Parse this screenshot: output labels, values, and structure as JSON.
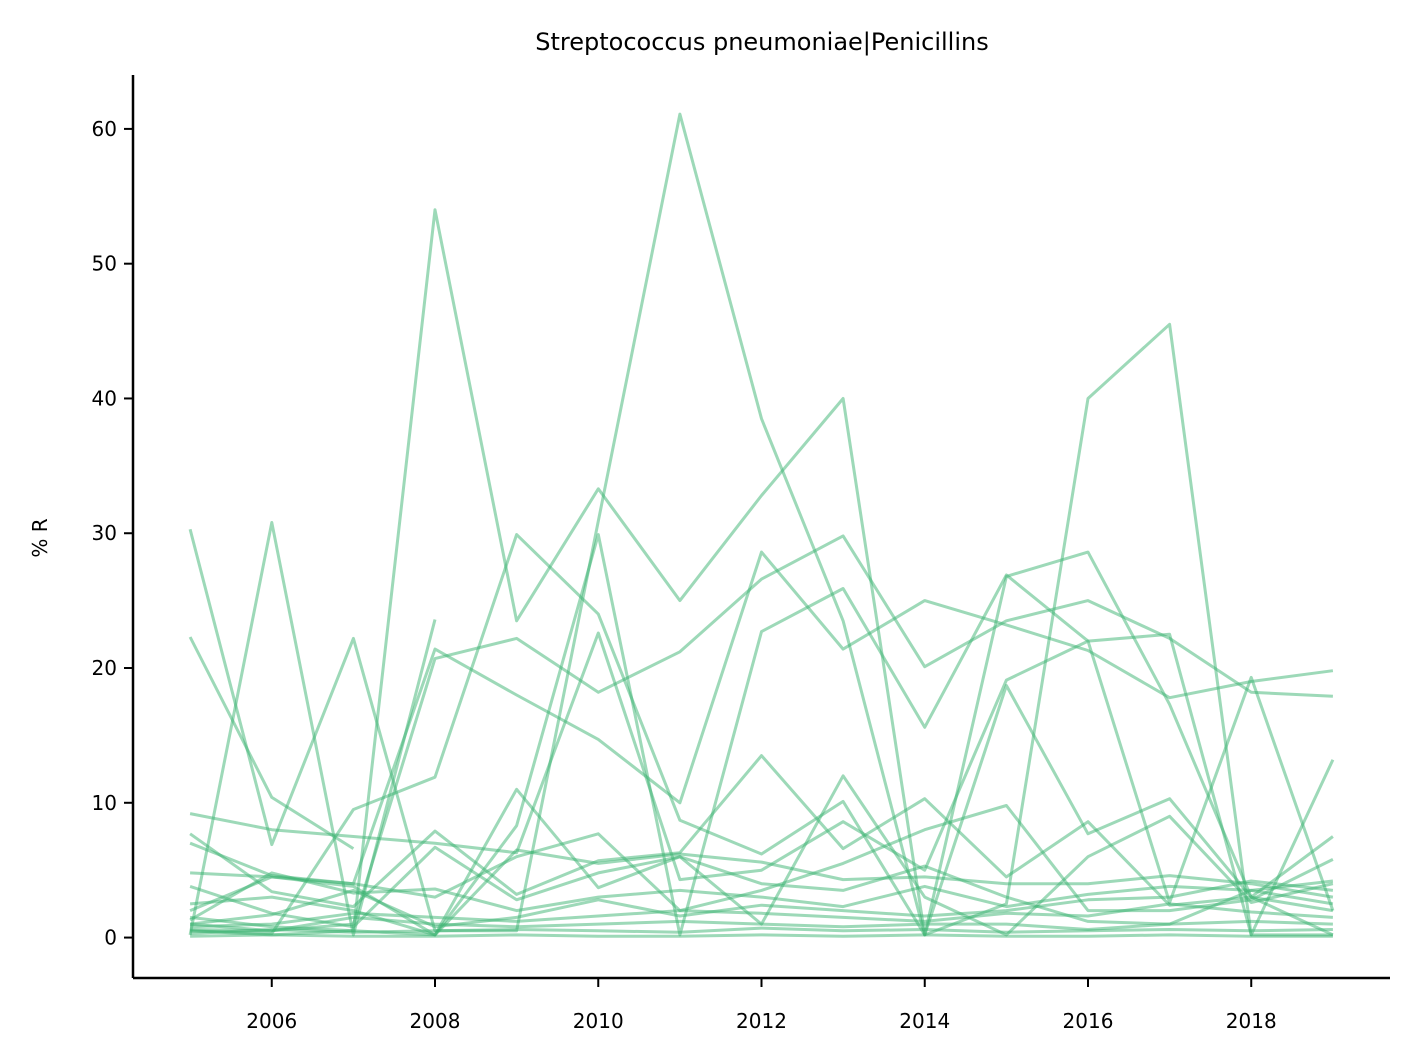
{
  "chart_data": {
    "type": "line",
    "title": "Streptococcus pneumoniae|Penicillins",
    "xlabel": "",
    "ylabel": "% R",
    "xlim": [
      2004.3,
      2019.7
    ],
    "ylim": [
      -3,
      64
    ],
    "xticks": [
      2006,
      2008,
      2010,
      2012,
      2014,
      2016,
      2018
    ],
    "yticks": [
      0,
      10,
      20,
      30,
      40,
      50,
      60
    ],
    "grid": false,
    "legend": "none",
    "line_color": "#3cb371",
    "x": [
      2005,
      2006,
      2007,
      2008,
      2009,
      2010,
      2011,
      2012,
      2013,
      2014,
      2015,
      2016,
      2017,
      2018,
      2019
    ],
    "series": [
      {
        "values": [
          1.5,
          0.8,
          0.5,
          54.0,
          23.5,
          33.3,
          25.0,
          32.8,
          40.0,
          0.2,
          18.7,
          7.7,
          10.3,
          3.0,
          0.2
        ]
      },
      {
        "values": [
          30.3,
          6.9,
          22.2,
          0.5,
          0.5,
          30.9,
          61.1,
          38.5,
          23.5,
          0.2,
          2.5,
          40.0,
          45.5,
          0.2,
          13.2
        ]
      },
      {
        "values": [
          22.3,
          10.4,
          6.6,
          null,
          null,
          null,
          null,
          null,
          null,
          null,
          null,
          null,
          null,
          null,
          null
        ]
      },
      {
        "values": [
          0.2,
          30.8,
          0.2,
          23.6,
          null,
          null,
          null,
          null,
          null,
          null,
          null,
          null,
          null,
          null,
          null
        ]
      },
      {
        "values": [
          0.5,
          0.3,
          9.5,
          11.9,
          29.9,
          24.0,
          8.7,
          6.2,
          10.1,
          0.2,
          26.8,
          28.6,
          17.3,
          3.0,
          2.0
        ]
      },
      {
        "values": [
          2.0,
          4.5,
          4.0,
          21.4,
          18.0,
          14.7,
          10.0,
          28.6,
          21.4,
          25.0,
          23.2,
          21.3,
          17.8,
          19.0,
          19.8
        ]
      },
      {
        "values": [
          1.0,
          0.5,
          1.0,
          20.7,
          22.2,
          18.2,
          21.2,
          26.6,
          29.8,
          20.1,
          23.5,
          25.0,
          22.2,
          18.2,
          17.9
        ]
      },
      {
        "values": [
          0.5,
          0.2,
          0.5,
          0.2,
          8.3,
          29.9,
          0.2,
          22.7,
          25.9,
          15.6,
          26.9,
          22.0,
          22.5,
          0.2,
          0.2
        ]
      },
      {
        "values": [
          9.2,
          8.0,
          7.5,
          7.0,
          6.3,
          22.6,
          4.3,
          5.0,
          8.6,
          5.0,
          19.1,
          22.0,
          2.6,
          19.3,
          2.0
        ]
      },
      {
        "values": [
          7.7,
          3.4,
          2.3,
          7.9,
          3.2,
          5.7,
          6.3,
          13.5,
          6.6,
          10.3,
          4.5,
          8.6,
          2.4,
          3.0,
          7.5
        ]
      },
      {
        "values": [
          4.8,
          4.5,
          3.8,
          0.2,
          11.0,
          3.7,
          6.0,
          1.0,
          12.0,
          3.0,
          0.2,
          6.0,
          9.0,
          2.6,
          4.0
        ]
      },
      {
        "values": [
          7.0,
          4.6,
          4.0,
          3.0,
          6.0,
          7.7,
          2.0,
          3.5,
          5.5,
          8.0,
          9.8,
          2.0,
          2.0,
          2.8,
          5.8
        ]
      },
      {
        "values": [
          3.8,
          1.8,
          0.8,
          6.7,
          2.8,
          4.8,
          6.0,
          4.0,
          3.5,
          5.3,
          3.0,
          1.2,
          1.0,
          3.5,
          4.2
        ]
      },
      {
        "values": [
          2.5,
          3.0,
          2.0,
          0.2,
          6.5,
          5.5,
          6.2,
          5.6,
          4.3,
          4.5,
          4.0,
          4.0,
          4.6,
          4.0,
          3.0
        ]
      },
      {
        "values": [
          1.3,
          4.8,
          3.3,
          3.6,
          2.0,
          3.0,
          3.5,
          3.0,
          2.3,
          3.8,
          2.3,
          3.2,
          3.8,
          3.5,
          2.5
        ]
      },
      {
        "values": [
          1.0,
          1.7,
          3.5,
          0.8,
          1.5,
          2.8,
          1.6,
          2.4,
          2.0,
          1.6,
          2.0,
          2.8,
          3.0,
          4.2,
          3.5
        ]
      },
      {
        "values": [
          0.8,
          1.0,
          1.8,
          1.5,
          1.2,
          1.6,
          2.0,
          1.8,
          1.5,
          1.2,
          1.8,
          1.6,
          2.5,
          1.9,
          1.5
        ]
      },
      {
        "values": [
          0.6,
          0.5,
          1.5,
          1.0,
          0.8,
          1.0,
          1.2,
          1.0,
          0.8,
          1.0,
          1.0,
          0.6,
          1.0,
          1.2,
          1.0
        ]
      },
      {
        "values": [
          0.3,
          0.6,
          0.4,
          0.5,
          0.6,
          0.5,
          0.4,
          0.7,
          0.5,
          0.6,
          0.4,
          0.5,
          0.6,
          0.5,
          0.6
        ]
      },
      {
        "values": [
          0.1,
          0.2,
          0.1,
          0.1,
          0.2,
          0.1,
          0.1,
          0.2,
          0.1,
          0.2,
          0.1,
          0.1,
          0.2,
          0.1,
          0.1
        ]
      }
    ]
  }
}
